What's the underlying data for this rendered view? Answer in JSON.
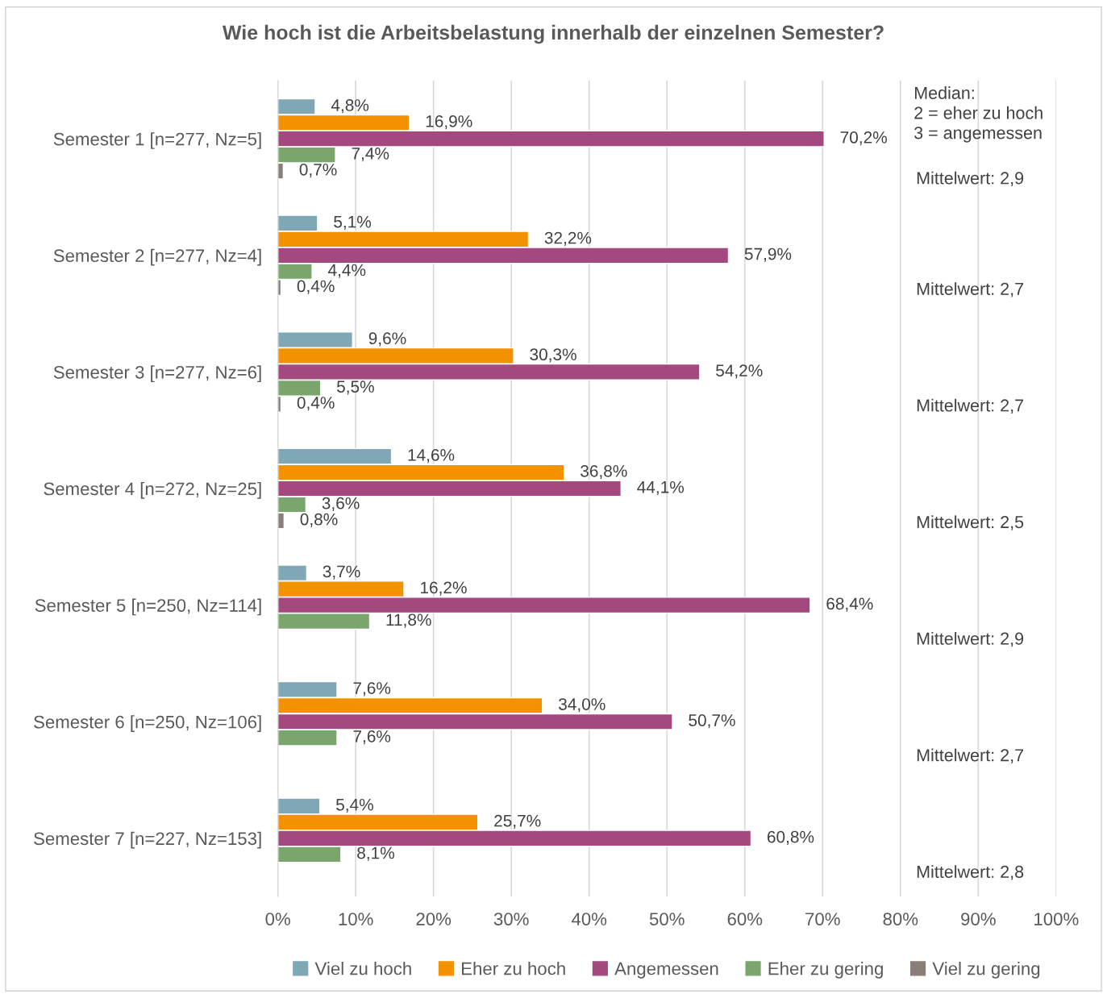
{
  "chart_data": {
    "type": "bar",
    "orientation": "horizontal",
    "title": "Wie hoch ist die Arbeitsbelastung innerhalb der einzelnen Semester?",
    "categories": [
      "Semester 1 [n=277, Nz=5]",
      "Semester 2 [n=277, Nz=4]",
      "Semester 3 [n=277, Nz=6]",
      "Semester 4 [n=272, Nz=25]",
      "Semester 5 [n=250, Nz=114]",
      "Semester 6 [n=250, Nz=106]",
      "Semester 7 [n=227, Nz=153]"
    ],
    "series": [
      {
        "name": "Viel zu hoch",
        "color": "#7fa7b5",
        "values": [
          4.8,
          5.1,
          9.6,
          14.6,
          3.7,
          7.6,
          5.4
        ],
        "value_labels": [
          "4,8%",
          "5,1%",
          "9,6%",
          "14,6%",
          "3,7%",
          "7,6%",
          "5,4%"
        ]
      },
      {
        "name": "Eher zu hoch",
        "color": "#f39200",
        "values": [
          16.9,
          32.2,
          30.3,
          36.8,
          16.2,
          34.0,
          25.7
        ],
        "value_labels": [
          "16,9%",
          "32,2%",
          "30,3%",
          "36,8%",
          "16,2%",
          "34,0%",
          "25,7%"
        ]
      },
      {
        "name": "Angemessen",
        "color": "#a3497f",
        "values": [
          70.2,
          57.9,
          54.2,
          44.1,
          68.4,
          50.7,
          60.8
        ],
        "value_labels": [
          "70,2%",
          "57,9%",
          "54,2%",
          "44,1%",
          "68,4%",
          "50,7%",
          "60,8%"
        ]
      },
      {
        "name": "Eher zu gering",
        "color": "#7aa56c",
        "values": [
          7.4,
          4.4,
          5.5,
          3.6,
          11.8,
          7.6,
          8.1
        ],
        "value_labels": [
          "7,4%",
          "4,4%",
          "5,5%",
          "3,6%",
          "11,8%",
          "7,6%",
          "8,1%"
        ]
      },
      {
        "name": "Viel zu gering",
        "color": "#8a7e78",
        "values": [
          0.7,
          0.4,
          0.4,
          0.8,
          null,
          null,
          null
        ],
        "value_labels": [
          "0,7%",
          "0,4%",
          "0,4%",
          "0,8%",
          null,
          null,
          null
        ]
      }
    ],
    "xlim": [
      0,
      100
    ],
    "xticks": [
      {
        "value": 0,
        "label": "0%"
      },
      {
        "value": 10,
        "label": "10%"
      },
      {
        "value": 20,
        "label": "20%"
      },
      {
        "value": 30,
        "label": "30%"
      },
      {
        "value": 40,
        "label": "40%"
      },
      {
        "value": 50,
        "label": "50%"
      },
      {
        "value": 60,
        "label": "60%"
      },
      {
        "value": 70,
        "label": "70%"
      },
      {
        "value": 80,
        "label": "80%"
      },
      {
        "value": 90,
        "label": "90%"
      },
      {
        "value": 100,
        "label": "100%"
      }
    ],
    "grid": "x",
    "legend": "bottom",
    "annotations": [
      "Median:\n2 = eher zu hoch\n3 = angemessen",
      "Mittelwert: 2,9",
      "Mittelwert: 2,7",
      "Mittelwert: 2,7",
      "Mittelwert: 2,5",
      "Mittelwert: 2,9",
      "Mittelwert: 2,7",
      "Mittelwert: 2,8"
    ]
  }
}
